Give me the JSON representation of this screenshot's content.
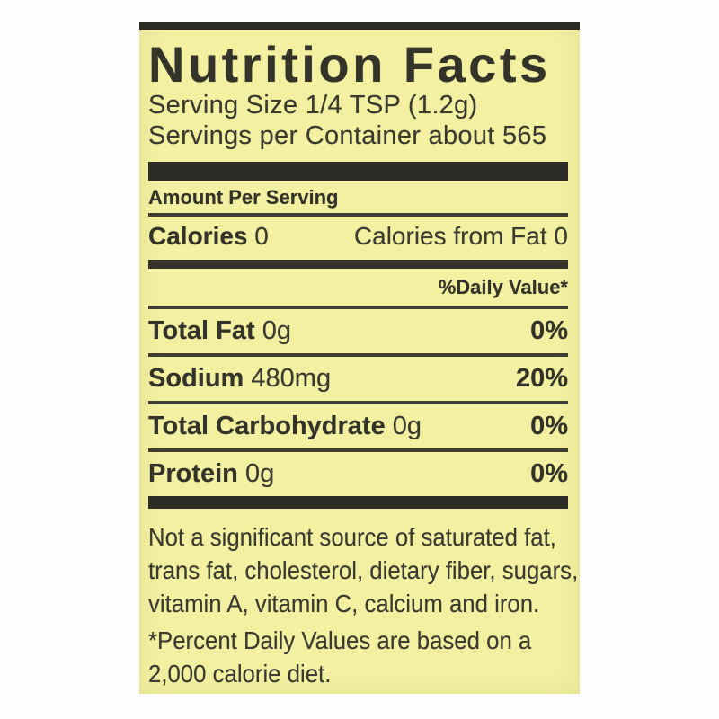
{
  "label": {
    "title": "Nutrition Facts",
    "serving_size": "Serving Size 1/4 TSP (1.2g)",
    "servings_per_container": "Servings per Container about 565",
    "amount_per_serving": "Amount Per Serving",
    "calories_label": "Calories",
    "calories_value": "0",
    "calories_from_fat": "Calories from Fat 0",
    "daily_value_header": "%Daily Value*",
    "nutrients": [
      {
        "name": "Total Fat",
        "amount": "0g",
        "daily_value": "0%"
      },
      {
        "name": "Sodium",
        "amount": "480mg",
        "daily_value": "20%"
      },
      {
        "name": "Total Carbohydrate",
        "amount": "0g",
        "daily_value": "0%"
      },
      {
        "name": "Protein",
        "amount": "0g",
        "daily_value": "0%"
      }
    ],
    "disclaimer_lines": [
      "Not a significant source of saturated fat,",
      "trans fat, cholesterol, dietary fiber, sugars,",
      "vitamin A, vitamin C, calcium and iron."
    ],
    "footnote_lines": [
      "*Percent Daily Values are based on a",
      "2,000 calorie diet."
    ],
    "colors": {
      "label_bg": "#f3f0a1",
      "bar": "#2d2b25",
      "rule": "#403e34",
      "text": "#3b3a30",
      "page_bg": "#ffffff"
    }
  }
}
